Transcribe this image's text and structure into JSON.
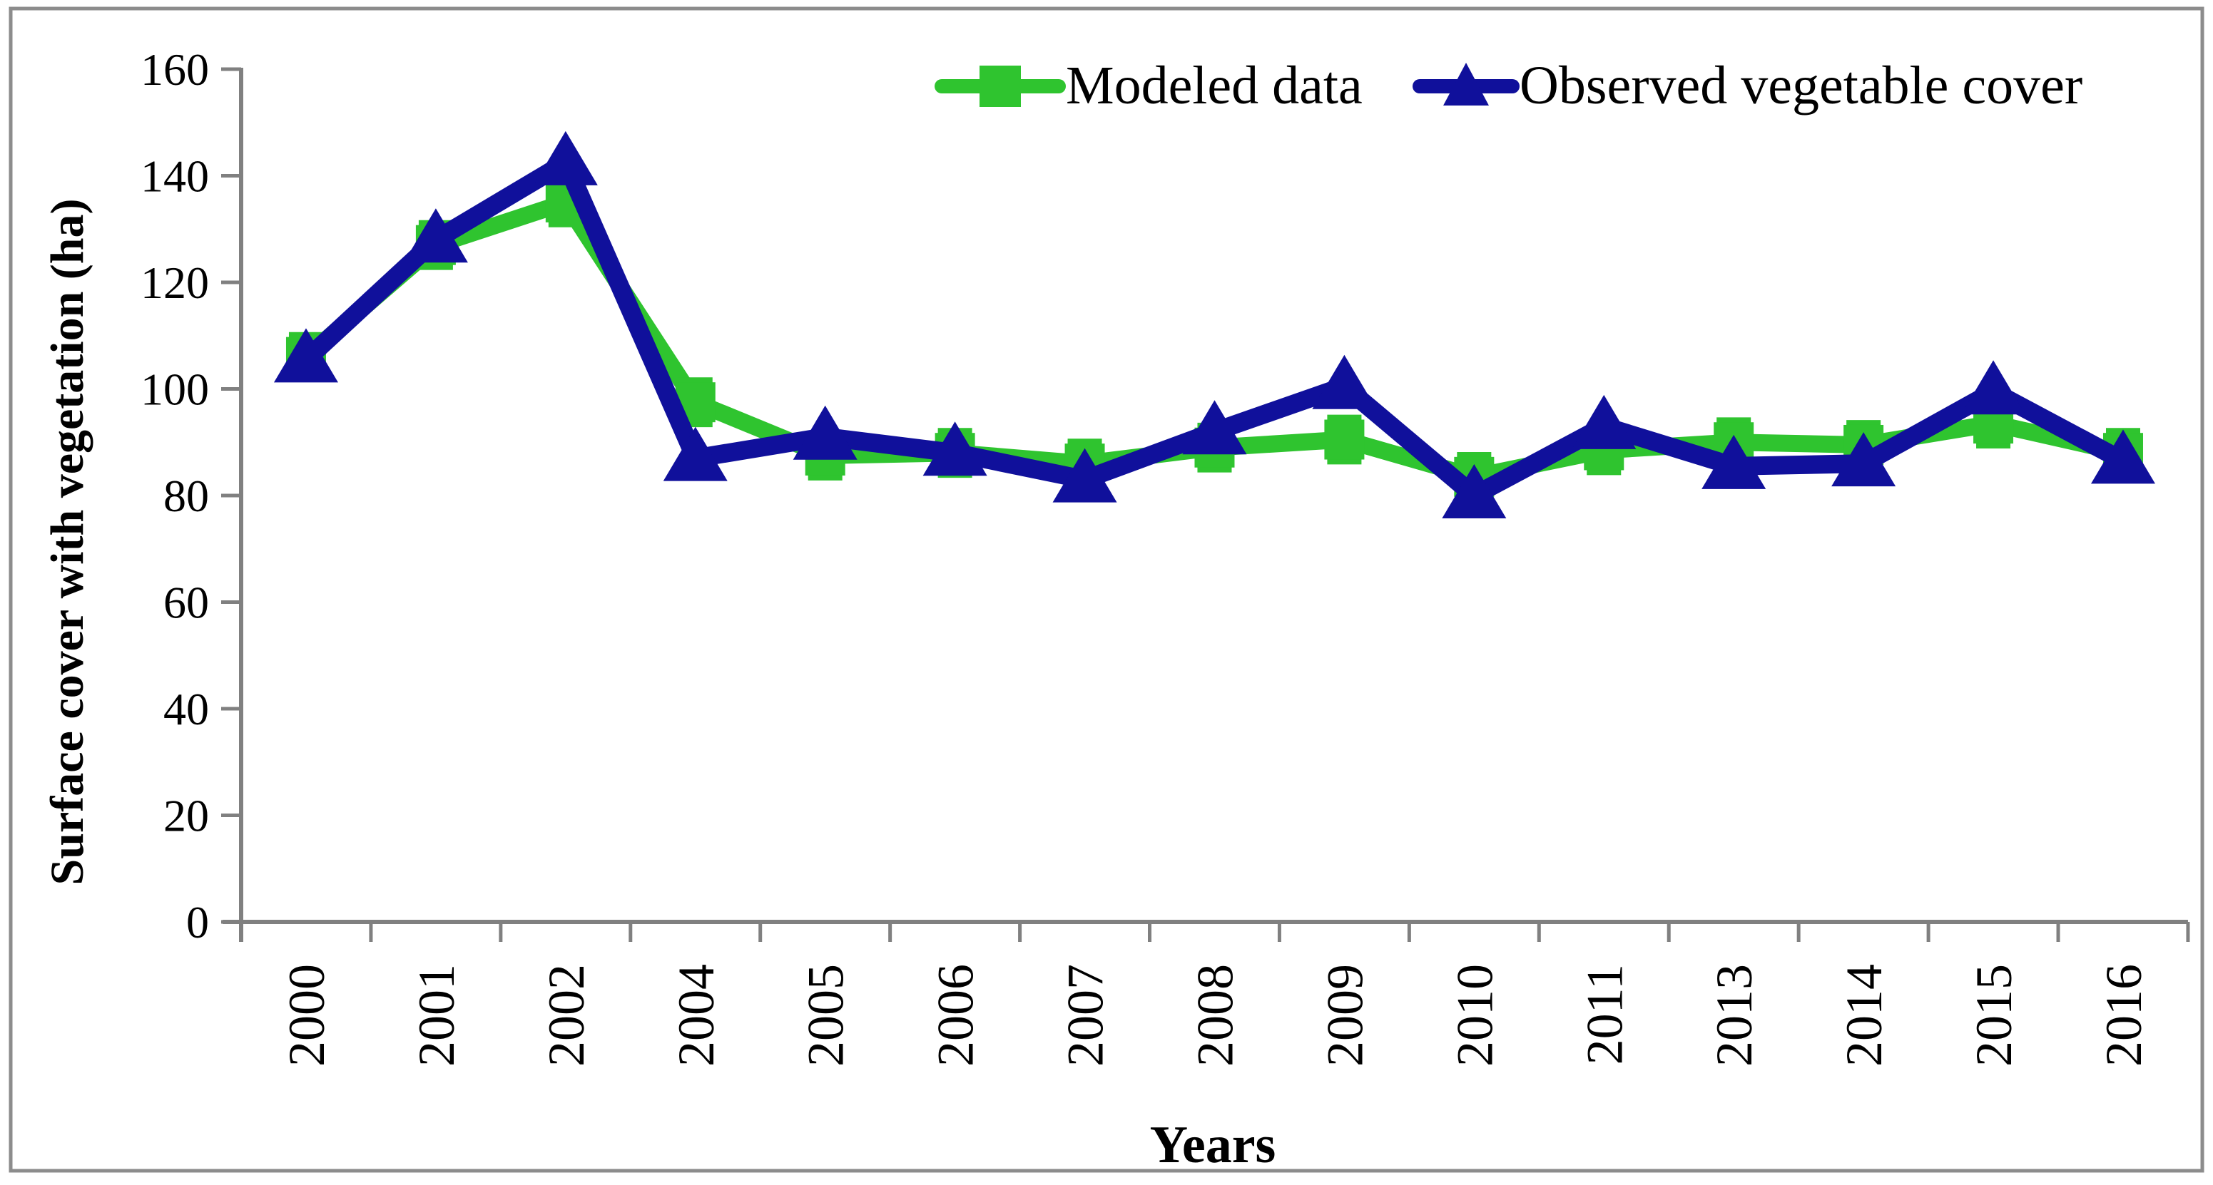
{
  "figure": {
    "border_color": "#8C8C8C",
    "background_color": "#FFFFFF",
    "axis_color": "#808080",
    "text_color": "#000000"
  },
  "chart_data": {
    "type": "line",
    "title": "",
    "xlabel": "Years",
    "ylabel": "Surface cover with vegetation (ha)",
    "categories": [
      "2000",
      "2001",
      "2002",
      "2004",
      "2005",
      "2006",
      "2007",
      "2008",
      "2009",
      "2010",
      "2011",
      "2013",
      "2014",
      "2015",
      "2016"
    ],
    "series": [
      {
        "name": "Modeled data",
        "color": "#2FC42F",
        "marker": "square",
        "line_width": 24,
        "error_bar": 4,
        "values": [
          106,
          127,
          135,
          97.5,
          87.5,
          88,
          86,
          89,
          90.5,
          83.5,
          88.5,
          90,
          89.5,
          93.5,
          88
        ]
      },
      {
        "name": "Observed vegetable cover",
        "color": "#10109B",
        "marker": "triangle-up",
        "line_width": 26,
        "error_bar": 0,
        "values": [
          105.5,
          128,
          142.5,
          87,
          91,
          88,
          83,
          92,
          100.5,
          80,
          93,
          85.5,
          86,
          99.5,
          86.5
        ]
      }
    ],
    "ylim": [
      0,
      160
    ],
    "ytick_step": 20,
    "yticks": [
      "0",
      "20",
      "40",
      "60",
      "80",
      "100",
      "120",
      "140",
      "160"
    ],
    "grid": false,
    "legend_position": "top"
  }
}
